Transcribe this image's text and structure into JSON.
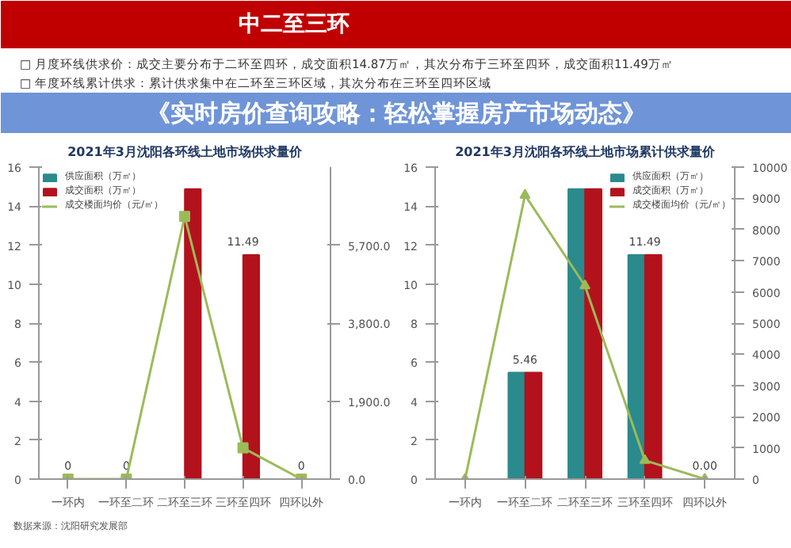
{
  "chart_data": [
    {
      "type": "bar",
      "title": "2021年3月沈阳各环线土地市场供求量价",
      "categories": [
        "一环内",
        "一环至二环",
        "二环至三环",
        "三环至四环",
        "四环以外"
      ],
      "series": [
        {
          "name": "供应面积（万㎡）",
          "color": "#2a8a8c",
          "values": [
            0,
            0,
            0,
            0,
            0
          ]
        },
        {
          "name": "成交面积（万㎡）",
          "color": "#b3121c",
          "values": [
            0,
            0,
            14.87,
            11.49,
            0
          ],
          "value_labels": [
            "0",
            "0",
            null,
            "11.49",
            "0"
          ]
        },
        {
          "name": "成交楼面均价（元/㎡）",
          "type": "line",
          "axis": "y2",
          "color": "#9bbb59",
          "marker": "square",
          "values": [
            0,
            0,
            6400,
            760,
            0
          ]
        }
      ],
      "ylim": [
        0,
        16
      ],
      "yticks": [
        0,
        2,
        4,
        6,
        8,
        10,
        12,
        14,
        16
      ],
      "y2lim": [
        0,
        7600
      ],
      "y2ticks": [
        {
          "value": 0,
          "label": "0.0"
        },
        {
          "value": 1900,
          "label": "1,900.0"
        },
        {
          "value": 3800,
          "label": "3,800.0"
        },
        {
          "value": 5700,
          "label": "5,700.0"
        }
      ],
      "legend": "top left",
      "annotations": [
        "中二至三环",
        "□ 月度环线供求价：成交主要分布于二环至四环，成交面积14.87万㎡，其次分布于三环至四环，成交面积11.49万㎡",
        "□ 年度环线累计供求：累计供求集中在二环至三环区域，其次分布在三环至四环区域",
        "《实时房价查询攻略：轻松掌握房产市场动态》",
        "数据来源：沈阳研究发展部"
      ]
    },
    {
      "type": "bar",
      "title": "2021年3月沈阳各环线土地市场累计供求量价",
      "categories": [
        "一环内",
        "一环至二环",
        "二环至三环",
        "三环至四环",
        "四环以外"
      ],
      "series": [
        {
          "name": "供应面积（万㎡）",
          "color": "#2a8a8c",
          "values": [
            0,
            5.46,
            14.87,
            11.49,
            0
          ]
        },
        {
          "name": "成交面积（万㎡）",
          "color": "#b3121c",
          "values": [
            0,
            5.46,
            14.87,
            11.49,
            0
          ],
          "value_labels": [
            null,
            "5.46",
            null,
            "11.49",
            "0.00"
          ]
        },
        {
          "name": "成交楼面均价（元/㎡）",
          "type": "line",
          "axis": "y2",
          "color": "#9bbb59",
          "marker": "triangle",
          "values": [
            0,
            9100,
            6200,
            600,
            0
          ]
        }
      ],
      "ylim": [
        0,
        16
      ],
      "yticks": [
        0,
        2,
        4,
        6,
        8,
        10,
        12,
        14,
        16
      ],
      "y2lim": [
        0,
        10000
      ],
      "y2ticks": [
        0,
        1000,
        2000,
        3000,
        4000,
        5000,
        6000,
        7000,
        8000,
        9000,
        10000
      ],
      "legend": "top right"
    }
  ]
}
